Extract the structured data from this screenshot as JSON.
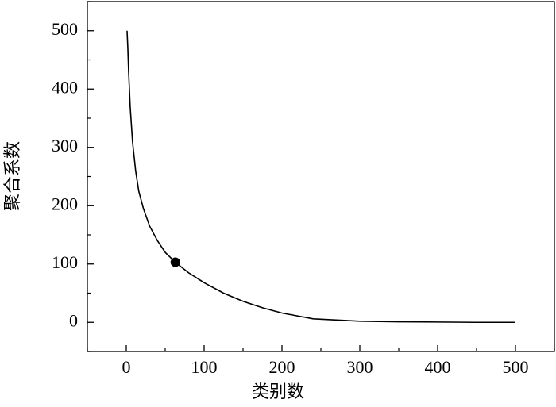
{
  "chart_data": {
    "type": "line",
    "xlabel": "类别数",
    "ylabel": "聚合系数",
    "xlim": [
      -50,
      550
    ],
    "ylim": [
      -50,
      550
    ],
    "xticks": [
      0,
      100,
      200,
      300,
      400,
      500
    ],
    "yticks": [
      0,
      100,
      200,
      300,
      400,
      500
    ],
    "xminorticks": [
      -50,
      50,
      150,
      250,
      350,
      450,
      550
    ],
    "yminorticks": [
      -50,
      50,
      150,
      250,
      350,
      450,
      550
    ],
    "color": "#000000",
    "x": [
      1,
      2,
      3,
      5,
      8,
      12,
      16,
      22,
      30,
      40,
      50,
      63,
      80,
      100,
      125,
      150,
      175,
      200,
      240,
      300,
      350,
      400,
      450,
      499
    ],
    "values": [
      500,
      470,
      430,
      370,
      310,
      260,
      225,
      195,
      165,
      140,
      120,
      103,
      85,
      68,
      50,
      36,
      25,
      16,
      6,
      2,
      1,
      0.5,
      0,
      0
    ],
    "highlight": {
      "x": 63,
      "y": 103
    }
  }
}
